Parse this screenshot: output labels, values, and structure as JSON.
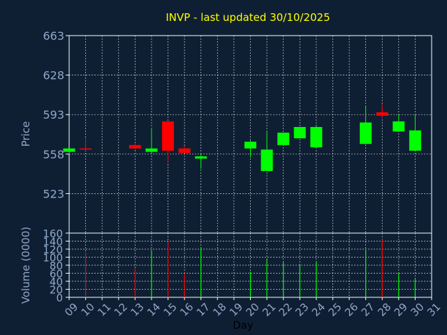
{
  "chart_data": [
    {
      "type": "candlestick",
      "title": "INVP - last updated 30/10/2025",
      "ylabel": "Price",
      "ylim": [
        488,
        663
      ],
      "yticks": [
        523,
        558,
        593,
        628,
        663
      ],
      "xticks": [
        "09",
        "10",
        "11",
        "12",
        "13",
        "14",
        "15",
        "16",
        "17",
        "18",
        "19",
        "20",
        "21",
        "22",
        "23",
        "24",
        "25",
        "26",
        "27",
        "28",
        "29",
        "30",
        "31"
      ],
      "grid": true,
      "up_color": "#00ff00",
      "down_color": "#ff0000",
      "candles": [
        {
          "day": "09",
          "open": 560,
          "high": 563,
          "low": 558,
          "close": 563
        },
        {
          "day": "10",
          "open": 563,
          "high": 573,
          "low": 561,
          "close": 562
        },
        {
          "day": "13",
          "open": 566,
          "high": 568,
          "low": 562,
          "close": 563
        },
        {
          "day": "14",
          "open": 560,
          "high": 580,
          "low": 558,
          "close": 563
        },
        {
          "day": "15",
          "open": 587,
          "high": 587,
          "low": 551,
          "close": 561
        },
        {
          "day": "16",
          "open": 563,
          "high": 565,
          "low": 559,
          "close": 559
        },
        {
          "day": "17",
          "open": 554,
          "high": 558,
          "low": 545,
          "close": 556
        },
        {
          "day": "20",
          "open": 563,
          "high": 570,
          "low": 555,
          "close": 569
        },
        {
          "day": "21",
          "open": 543,
          "high": 578,
          "low": 543,
          "close": 562
        },
        {
          "day": "22",
          "open": 566,
          "high": 576,
          "low": 566,
          "close": 577
        },
        {
          "day": "23",
          "open": 572,
          "high": 582,
          "low": 572,
          "close": 582
        },
        {
          "day": "24",
          "open": 564,
          "high": 584,
          "low": 564,
          "close": 582
        },
        {
          "day": "27",
          "open": 567,
          "high": 600,
          "low": 567,
          "close": 586
        },
        {
          "day": "28",
          "open": 595,
          "high": 602,
          "low": 590,
          "close": 592
        },
        {
          "day": "29",
          "open": 578,
          "high": 593,
          "low": 578,
          "close": 587
        },
        {
          "day": "30",
          "open": 561,
          "high": 593,
          "low": 561,
          "close": 579
        }
      ]
    },
    {
      "type": "bar",
      "ylabel": "Volume (0000)",
      "xlabel": "Day",
      "ylim": [
        0,
        160
      ],
      "yticks": [
        0,
        20,
        40,
        60,
        80,
        100,
        120,
        140,
        160
      ],
      "xticks": [
        "09",
        "10",
        "11",
        "12",
        "13",
        "14",
        "15",
        "16",
        "17",
        "18",
        "19",
        "20",
        "21",
        "22",
        "23",
        "24",
        "25",
        "26",
        "27",
        "28",
        "29",
        "30",
        "31"
      ],
      "grid": true,
      "bars": [
        {
          "day": "10",
          "value": 112,
          "color": "#ff0000"
        },
        {
          "day": "13",
          "value": 72,
          "color": "#ff0000"
        },
        {
          "day": "14",
          "value": 115,
          "color": "#00ff00"
        },
        {
          "day": "15",
          "value": 138,
          "color": "#ff0000"
        },
        {
          "day": "16",
          "value": 60,
          "color": "#ff0000"
        },
        {
          "day": "17",
          "value": 123,
          "color": "#00ff00"
        },
        {
          "day": "20",
          "value": 64,
          "color": "#00ff00"
        },
        {
          "day": "21",
          "value": 95,
          "color": "#00ff00"
        },
        {
          "day": "22",
          "value": 88,
          "color": "#00ff00"
        },
        {
          "day": "23",
          "value": 80,
          "color": "#00ff00"
        },
        {
          "day": "24",
          "value": 88,
          "color": "#00ff00"
        },
        {
          "day": "27",
          "value": 117,
          "color": "#00ff00"
        },
        {
          "day": "28",
          "value": 145,
          "color": "#ff0000"
        },
        {
          "day": "29",
          "value": 60,
          "color": "#00ff00"
        },
        {
          "day": "30",
          "value": 45,
          "color": "#00ff00"
        }
      ]
    }
  ]
}
